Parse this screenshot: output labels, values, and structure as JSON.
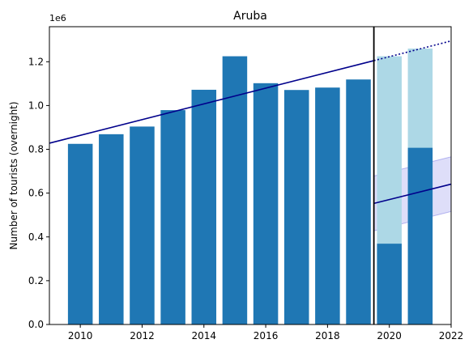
{
  "chart_data": {
    "type": "bar",
    "title": "Aruba",
    "ylabel": "Number of tourists (overnight)",
    "xlabel": "",
    "offset_label": "1e6",
    "xlim": [
      2009,
      2022
    ],
    "ylim": [
      0,
      1360000
    ],
    "x_ticks": [
      2010,
      2012,
      2014,
      2016,
      2018,
      2020,
      2022
    ],
    "y_ticks": [
      0,
      200000,
      400000,
      600000,
      800000,
      1000000,
      1200000
    ],
    "y_tick_labels": [
      "0.0",
      "0.2",
      "0.4",
      "0.6",
      "0.8",
      "1.0",
      "1.2"
    ],
    "grid": false,
    "series": [
      {
        "years": [
          2010,
          2011,
          2012,
          2013,
          2014,
          2015,
          2016,
          2017,
          2018,
          2019,
          2020,
          2021
        ],
        "values": [
          825000,
          869000,
          904000,
          979000,
          1072000,
          1225000,
          1102000,
          1071000,
          1082000,
          1119000,
          369000,
          807000
        ],
        "color": "#1f77b4"
      },
      {
        "years": [
          2020,
          2021
        ],
        "values": [
          1225000,
          1260000
        ],
        "color": "#add8e6"
      }
    ],
    "trend_line": {
      "x": [
        2009,
        2019.5
      ],
      "y": [
        828000,
        1205000
      ],
      "color": "#00008b"
    },
    "trend_extension": {
      "x": [
        2019.5,
        2022
      ],
      "y": [
        1205000,
        1295000
      ],
      "style": "dotted",
      "color": "#00008b"
    },
    "covid_line": {
      "x": [
        2019.5,
        2022
      ],
      "y": [
        553000,
        641000
      ],
      "color": "#00008b"
    },
    "covid_band": {
      "x": [
        2019.5,
        2022
      ],
      "upper": [
        678000,
        766000
      ],
      "lower": [
        428000,
        516000
      ],
      "color": "#0000cd"
    },
    "event_line": {
      "x": 2019.5,
      "color": "#000000"
    }
  }
}
